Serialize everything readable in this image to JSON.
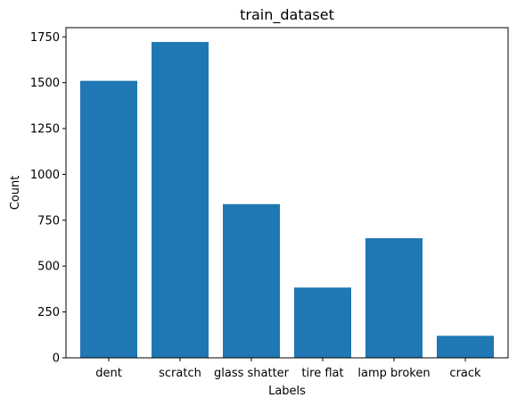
{
  "chart_data": {
    "type": "bar",
    "title": "train_dataset",
    "xlabel": "Labels",
    "ylabel": "Count",
    "categories": [
      "dent",
      "scratch",
      "glass shatter",
      "tire flat",
      "lamp broken",
      "crack"
    ],
    "values": [
      1510,
      1722,
      838,
      383,
      652,
      120
    ],
    "ylim": [
      0,
      1800
    ],
    "yticks": [
      0,
      250,
      500,
      750,
      1000,
      1250,
      1500,
      1750
    ],
    "grid": false,
    "legend": "none",
    "bar_color": "#1f77b4"
  }
}
